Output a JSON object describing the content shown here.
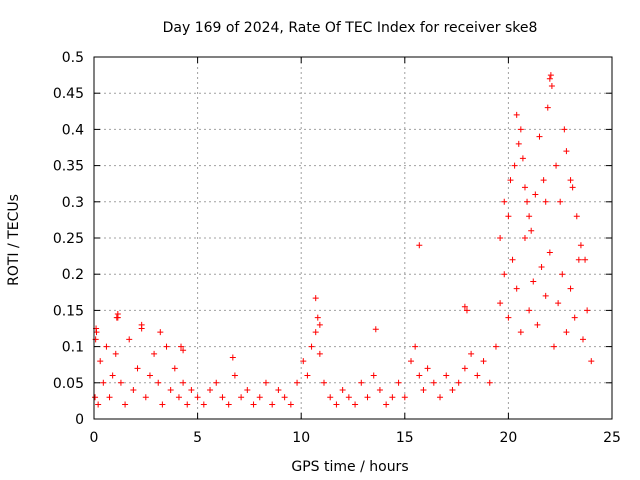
{
  "chart_data": {
    "type": "scatter",
    "title": "Day 169 of 2024, Rate Of TEC Index for receiver ske8",
    "xlabel": "GPS time / hours",
    "ylabel": "ROTI / TECUs",
    "xlim": [
      0,
      25
    ],
    "ylim": [
      0,
      0.5
    ],
    "xticks": [
      0,
      5,
      10,
      15,
      20,
      25
    ],
    "xtick_labels": [
      "0",
      "5",
      "10",
      "15",
      "20",
      "25"
    ],
    "yticks": [
      0,
      0.05,
      0.1,
      0.15,
      0.2,
      0.25,
      0.3,
      0.35,
      0.4,
      0.45,
      0.5
    ],
    "ytick_labels": [
      "0",
      "0.05",
      "0.1",
      "0.15",
      "0.2",
      "0.25",
      "0.3",
      "0.35",
      "0.4",
      "0.45",
      "0.5"
    ],
    "grid": true,
    "marker": "plus",
    "marker_color": "#ff0000",
    "series": [
      {
        "name": "ROTI",
        "x": [
          0.05,
          0.12,
          0.2,
          0.3,
          0.45,
          0.6,
          0.75,
          0.9,
          1.05,
          1.15,
          1.3,
          1.5,
          1.7,
          1.9,
          2.1,
          2.3,
          2.5,
          2.7,
          2.9,
          3.1,
          3.3,
          3.5,
          3.7,
          3.9,
          4.1,
          4.3,
          4.5,
          4.7,
          5.0,
          5.3,
          5.6,
          5.9,
          6.2,
          6.5,
          6.8,
          7.1,
          7.4,
          7.7,
          8.0,
          8.3,
          8.6,
          8.9,
          9.2,
          9.5,
          9.8,
          10.1,
          10.3,
          10.5,
          10.7,
          10.9,
          11.1,
          11.4,
          11.7,
          12.0,
          12.3,
          12.6,
          12.9,
          13.2,
          13.5,
          13.8,
          14.1,
          14.4,
          14.7,
          15.0,
          15.3,
          15.5,
          15.7,
          15.9,
          16.1,
          16.4,
          16.7,
          17.0,
          17.3,
          17.6,
          17.9,
          18.2,
          18.5,
          18.8,
          19.1,
          19.4,
          19.6,
          19.8,
          20.0,
          20.2,
          20.4,
          20.6,
          20.8,
          21.0,
          21.2,
          21.4,
          21.6,
          21.8,
          22.0,
          22.2,
          22.4,
          22.6,
          22.8,
          23.0,
          23.2,
          23.4,
          23.6,
          23.8,
          24.0,
          0.08,
          0.1,
          1.1,
          1.15,
          2.3,
          3.2,
          4.2,
          4.3,
          6.7,
          10.7,
          10.8,
          10.9,
          13.6,
          15.7,
          17.9,
          18.0,
          19.6,
          19.8,
          20.0,
          20.1,
          20.3,
          20.4,
          20.5,
          20.6,
          20.7,
          20.8,
          20.9,
          21.0,
          21.1,
          21.3,
          21.5,
          21.7,
          21.8,
          21.9,
          22.0,
          22.05,
          22.1,
          22.3,
          22.5,
          22.7,
          22.8,
          23.0,
          23.1,
          23.3,
          23.5,
          23.7
        ],
        "y": [
          0.03,
          0.12,
          0.02,
          0.08,
          0.05,
          0.1,
          0.03,
          0.06,
          0.09,
          0.14,
          0.05,
          0.02,
          0.11,
          0.04,
          0.07,
          0.13,
          0.03,
          0.06,
          0.09,
          0.05,
          0.02,
          0.1,
          0.04,
          0.07,
          0.03,
          0.05,
          0.02,
          0.04,
          0.03,
          0.02,
          0.04,
          0.05,
          0.03,
          0.02,
          0.06,
          0.03,
          0.04,
          0.02,
          0.03,
          0.05,
          0.02,
          0.04,
          0.03,
          0.02,
          0.05,
          0.08,
          0.06,
          0.1,
          0.12,
          0.09,
          0.05,
          0.03,
          0.02,
          0.04,
          0.03,
          0.02,
          0.05,
          0.03,
          0.06,
          0.04,
          0.02,
          0.03,
          0.05,
          0.03,
          0.08,
          0.1,
          0.06,
          0.04,
          0.07,
          0.05,
          0.03,
          0.06,
          0.04,
          0.05,
          0.07,
          0.09,
          0.06,
          0.08,
          0.05,
          0.1,
          0.16,
          0.2,
          0.14,
          0.22,
          0.18,
          0.12,
          0.25,
          0.15,
          0.19,
          0.13,
          0.21,
          0.17,
          0.23,
          0.1,
          0.16,
          0.2,
          0.12,
          0.18,
          0.14,
          0.22,
          0.11,
          0.15,
          0.08,
          0.11,
          0.125,
          0.14,
          0.145,
          0.125,
          0.12,
          0.1,
          0.095,
          0.085,
          0.167,
          0.14,
          0.13,
          0.124,
          0.24,
          0.155,
          0.15,
          0.25,
          0.3,
          0.28,
          0.33,
          0.35,
          0.42,
          0.38,
          0.4,
          0.36,
          0.32,
          0.3,
          0.28,
          0.26,
          0.31,
          0.39,
          0.33,
          0.3,
          0.43,
          0.47,
          0.475,
          0.46,
          0.35,
          0.3,
          0.4,
          0.37,
          0.33,
          0.32,
          0.28,
          0.24,
          0.22
        ]
      }
    ]
  }
}
